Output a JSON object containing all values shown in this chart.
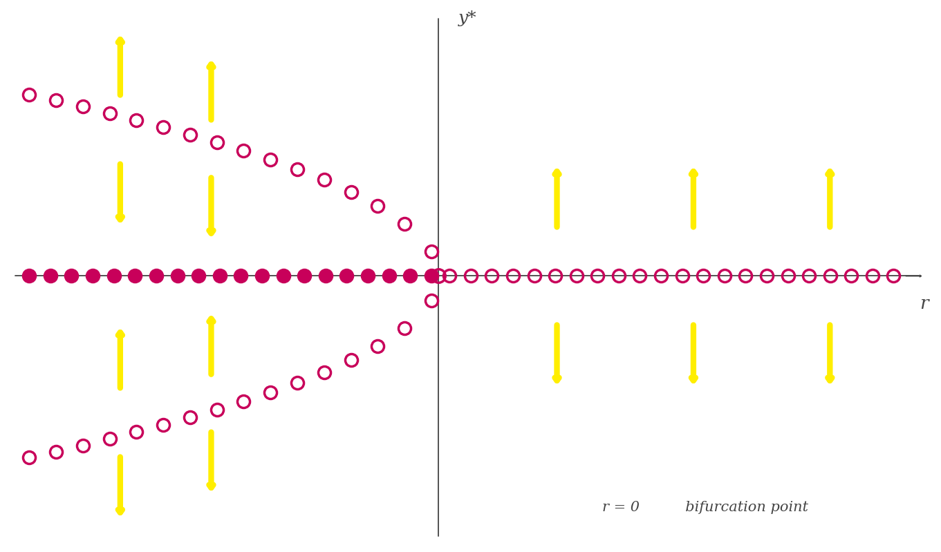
{
  "background_color": "#ffffff",
  "axis_color": "#444444",
  "marker_color": "#c8005a",
  "arrow_color": "#ffee00",
  "annotation_text": "r = 0          bifurcation point",
  "annotation_fontsize": 15,
  "xlim": [
    -4.8,
    5.5
  ],
  "ylim": [
    -3.2,
    3.2
  ],
  "axis_x_origin": 0.0,
  "axis_y_origin": 0.0,
  "ylabel_text": "y*",
  "xlabel_text": "r",
  "marker_size_filled": 14,
  "marker_size_open": 13,
  "arrow_lw": 6,
  "arrow_hw": 0.22,
  "arrow_hl": 0.3,
  "r_neg_start": -4.5,
  "r_neg_end": -0.08,
  "r_neg_n": 20,
  "r_pos_start": 0.12,
  "r_pos_end": 5.0,
  "r_pos_n": 22,
  "r_branch_start": -4.5,
  "r_branch_end": -0.08,
  "r_branch_n": 16
}
